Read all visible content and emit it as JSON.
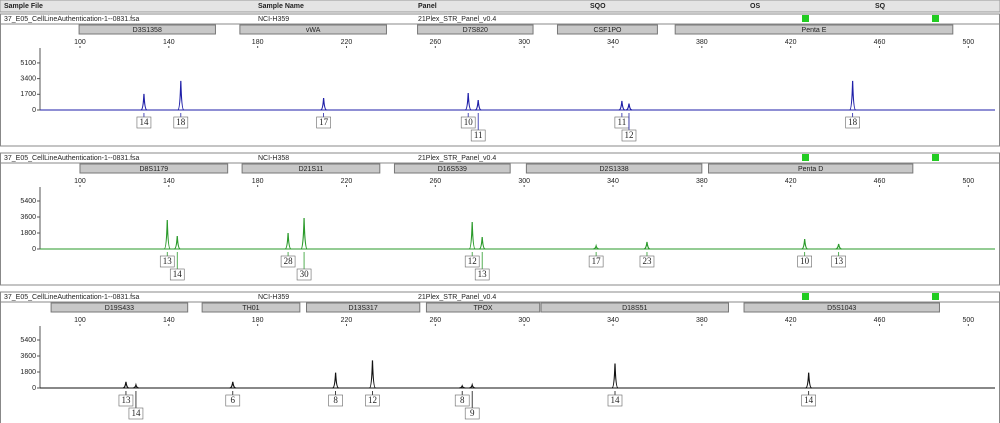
{
  "header": {
    "columns": [
      "Sample File",
      "Sample Name",
      "Panel",
      "SQO",
      "OS",
      "SQ"
    ]
  },
  "panels": [
    {
      "sample_file": "37_E05_CellLineAuthentication-1--0831.fsa",
      "sample_name": "NCI-H359",
      "panel": "21Plex_STR_Panel_v0.4",
      "color": "#1f1fa8",
      "loci": [
        {
          "name": "D3S1358",
          "range": [
            99.6,
            161
          ]
        },
        {
          "name": "vWA",
          "range": [
            172,
            238
          ]
        },
        {
          "name": "D7S820",
          "range": [
            252,
            304
          ]
        },
        {
          "name": "CSF1PO",
          "range": [
            315,
            360
          ]
        },
        {
          "name": "Penta E",
          "range": [
            368,
            493
          ]
        }
      ],
      "xlim": [
        82,
        512
      ],
      "xticks": [
        100,
        140,
        180,
        220,
        260,
        300,
        340,
        380,
        420,
        460,
        500
      ],
      "ylim": [
        0,
        6500
      ],
      "yticks": [
        0,
        1700,
        3400,
        5100
      ],
      "peaks": [
        {
          "size": 128.8,
          "height": 1740,
          "label": "14"
        },
        {
          "size": 145.4,
          "height": 3150,
          "label": "18"
        },
        {
          "size": 209.7,
          "height": 1300,
          "label": "17"
        },
        {
          "size": 274.8,
          "height": 1840,
          "label": "10"
        },
        {
          "size": 279.3,
          "height": 1080,
          "label": "11"
        },
        {
          "size": 344,
          "height": 980,
          "label": "11"
        },
        {
          "size": 347.2,
          "height": 700,
          "label": "12"
        },
        {
          "size": 447.9,
          "height": 3150,
          "label": "18"
        }
      ]
    },
    {
      "sample_file": "37_E05_CellLineAuthentication-1--0831.fsa",
      "sample_name": "NCI-H358",
      "panel": "21Plex_STR_Panel_v0.4",
      "color": "#2a9a2a",
      "loci": [
        {
          "name": "D8S1179",
          "range": [
            100,
            166.5
          ]
        },
        {
          "name": "D21S11",
          "range": [
            173,
            235
          ]
        },
        {
          "name": "D16S539",
          "range": [
            241.6,
            293.7
          ]
        },
        {
          "name": "D2S1338",
          "range": [
            301,
            380
          ]
        },
        {
          "name": "Penta D",
          "range": [
            383,
            475
          ]
        }
      ],
      "xlim": [
        82,
        512
      ],
      "xticks": [
        100,
        140,
        180,
        220,
        260,
        300,
        340,
        380,
        420,
        460,
        500
      ],
      "ylim": [
        0,
        6750
      ],
      "yticks": [
        0,
        1800,
        3600,
        5400
      ],
      "peaks": [
        {
          "size": 139.3,
          "height": 3260,
          "label": "13"
        },
        {
          "size": 143.8,
          "height": 1460,
          "label": "14"
        },
        {
          "size": 193.7,
          "height": 1800,
          "label": "28"
        },
        {
          "size": 200.9,
          "height": 3490,
          "label": "30"
        },
        {
          "size": 276.6,
          "height": 3040,
          "label": "12"
        },
        {
          "size": 281.1,
          "height": 1350,
          "label": "13"
        },
        {
          "size": 332.4,
          "height": 340,
          "label": "17"
        },
        {
          "size": 355.3,
          "height": 790,
          "label": "23"
        },
        {
          "size": 426.3,
          "height": 1120,
          "label": "10"
        },
        {
          "size": 441.6,
          "height": 560,
          "label": "13"
        }
      ]
    },
    {
      "sample_file": "37_E05_CellLineAuthentication-1--0831.fsa",
      "sample_name": "NCI-H359",
      "panel": "21Plex_STR_Panel_v0.4",
      "color": "#111111",
      "loci": [
        {
          "name": "D19S433",
          "range": [
            87,
            148.5
          ]
        },
        {
          "name": "TH01",
          "range": [
            155,
            199
          ]
        },
        {
          "name": "D13S317",
          "range": [
            202,
            253
          ]
        },
        {
          "name": "TPOX",
          "range": [
            256,
            307
          ]
        },
        {
          "name": "D18S51",
          "range": [
            307.6,
            392
          ]
        },
        {
          "name": "D5S1043",
          "range": [
            399,
            487
          ]
        }
      ],
      "xlim": [
        82,
        512
      ],
      "xticks": [
        100,
        140,
        180,
        220,
        260,
        300,
        340,
        380,
        420,
        460,
        500
      ],
      "ylim": [
        0,
        6750
      ],
      "yticks": [
        0,
        1800,
        3600,
        5400
      ],
      "peaks": [
        {
          "size": 120.7,
          "height": 690,
          "label": "13"
        },
        {
          "size": 125.2,
          "height": 340,
          "label": "14"
        },
        {
          "size": 168.8,
          "height": 690,
          "label": "6"
        },
        {
          "size": 215.1,
          "height": 1720,
          "label": "8"
        },
        {
          "size": 231.7,
          "height": 3100,
          "label": "12"
        },
        {
          "size": 272.1,
          "height": 230,
          "label": "8"
        },
        {
          "size": 276.6,
          "height": 340,
          "label": "9"
        },
        {
          "size": 340.9,
          "height": 2760,
          "label": "14"
        },
        {
          "size": 428.1,
          "height": 1720,
          "label": "14"
        }
      ]
    }
  ]
}
